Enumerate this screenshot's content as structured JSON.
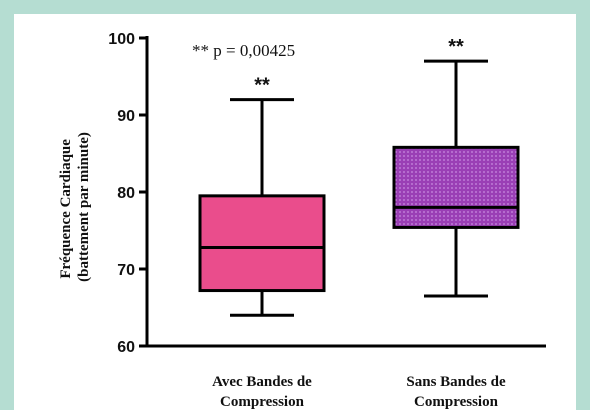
{
  "chart_data": {
    "type": "box",
    "annotation": "** p = 0,00425",
    "ylabel_lines": [
      "Fréquence Cardiaque",
      "(battement par minute)"
    ],
    "ylim": [
      60,
      100
    ],
    "yticks": [
      60,
      70,
      80,
      90,
      100
    ],
    "categories": [
      [
        "Avec Bandes de",
        "Compression"
      ],
      [
        "Sans Bandes de",
        "Compression"
      ]
    ],
    "boxes": [
      {
        "min": 64,
        "q1": 67.2,
        "median": 72.8,
        "q3": 79.5,
        "max": 92,
        "significance": "**",
        "color": "#ea4d8c",
        "pattern": "none"
      },
      {
        "min": 66.5,
        "q1": 75.4,
        "median": 78,
        "q3": 85.8,
        "max": 97,
        "significance": "**",
        "color": "#9a3fb5",
        "pattern": "dots"
      }
    ]
  }
}
